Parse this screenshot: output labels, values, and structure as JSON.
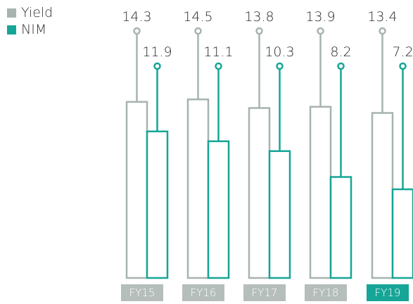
{
  "colors": {
    "yield": "#a7b3ae",
    "nim": "#16a596",
    "category_box": "#b5beba",
    "category_box_highlight": "#16a596",
    "text": "#2b2b2b"
  },
  "legend": [
    {
      "label": "Yield",
      "color": "#a7b3ae"
    },
    {
      "label": "NIM",
      "color": "#16a596"
    }
  ],
  "chart_data": {
    "type": "bar",
    "categories": [
      "FY15",
      "FY16",
      "FY17",
      "FY18",
      "FY19"
    ],
    "highlight_category": "FY19",
    "series": [
      {
        "name": "Yield",
        "values": [
          14.3,
          14.5,
          13.8,
          13.9,
          13.4
        ],
        "labels": [
          "14.3",
          "14.5",
          "13.8",
          "13.9",
          "13.4"
        ]
      },
      {
        "name": "NIM",
        "values": [
          11.9,
          11.1,
          10.3,
          8.2,
          7.2
        ],
        "labels": [
          "11.9",
          "11.1",
          "10.3",
          "8.2",
          "7.2"
        ]
      }
    ],
    "title": "",
    "xlabel": "",
    "ylabel": "",
    "legend_position": "top-left",
    "grid": false
  }
}
